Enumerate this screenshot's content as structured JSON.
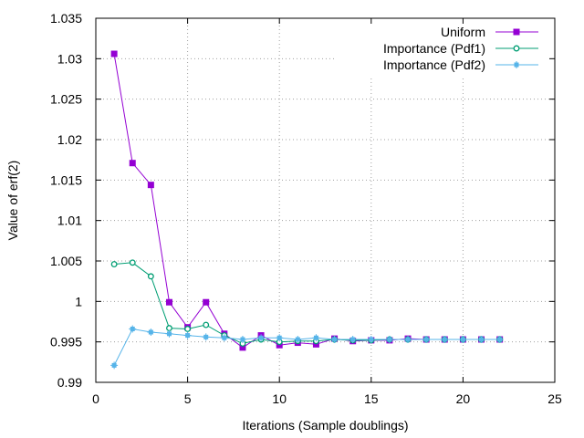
{
  "chart_data": {
    "type": "line",
    "title": "",
    "xlabel": "Iterations (Sample doublings)",
    "ylabel": "Value of erf(2)",
    "xlim": [
      0,
      25
    ],
    "ylim": [
      0.99,
      1.035
    ],
    "x_ticks": [
      "0",
      "5",
      "10",
      "15",
      "20",
      "25"
    ],
    "y_ticks": [
      "0.99",
      "0.995",
      "1",
      "1.005",
      "1.01",
      "1.015",
      "1.02",
      "1.025",
      "1.03",
      "1.035"
    ],
    "grid": true,
    "legend_position": "top-right",
    "series": [
      {
        "name": "Uniform",
        "color": "#9400d3",
        "marker": "filled-square",
        "x": [
          1,
          2,
          3,
          4,
          5,
          6,
          7,
          8,
          9,
          10,
          11,
          12,
          13,
          14,
          15,
          16,
          17,
          18,
          19,
          20,
          21,
          22
        ],
        "values": [
          1.0306,
          1.0171,
          1.0144,
          0.9999,
          0.9968,
          0.9999,
          0.996,
          0.9943,
          0.9958,
          0.9946,
          0.9949,
          0.9947,
          0.9954,
          0.9951,
          0.9952,
          0.9952,
          0.9954,
          0.9953,
          0.9953,
          0.9953,
          0.9953,
          0.9953
        ]
      },
      {
        "name": "Importance (Pdf1)",
        "color": "#009e73",
        "marker": "open-circle",
        "x": [
          1,
          2,
          3,
          4,
          5,
          6,
          7,
          8,
          9,
          10,
          11,
          12,
          13,
          14,
          15,
          16,
          17,
          18,
          19,
          20,
          21,
          22
        ],
        "values": [
          1.0046,
          1.0048,
          1.0031,
          0.9967,
          0.9966,
          0.9971,
          0.9958,
          0.9948,
          0.9953,
          0.995,
          0.9951,
          0.9951,
          0.9953,
          0.9952,
          0.9952,
          0.9953,
          0.9953,
          0.9953,
          0.9953,
          0.9953,
          0.9953,
          0.9953
        ]
      },
      {
        "name": "Importance (Pdf2)",
        "color": "#56b4e9",
        "marker": "filled-star",
        "x": [
          1,
          2,
          3,
          4,
          5,
          6,
          7,
          8,
          9,
          10,
          11,
          12,
          13,
          14,
          15,
          16,
          17,
          18,
          19,
          20,
          21,
          22
        ],
        "values": [
          0.9921,
          0.9966,
          0.9962,
          0.996,
          0.9958,
          0.9956,
          0.9955,
          0.9953,
          0.9955,
          0.9955,
          0.9953,
          0.9955,
          0.9953,
          0.9953,
          0.9953,
          0.9953,
          0.9953,
          0.9953,
          0.9953,
          0.9953,
          0.9953,
          0.9953
        ]
      }
    ]
  }
}
